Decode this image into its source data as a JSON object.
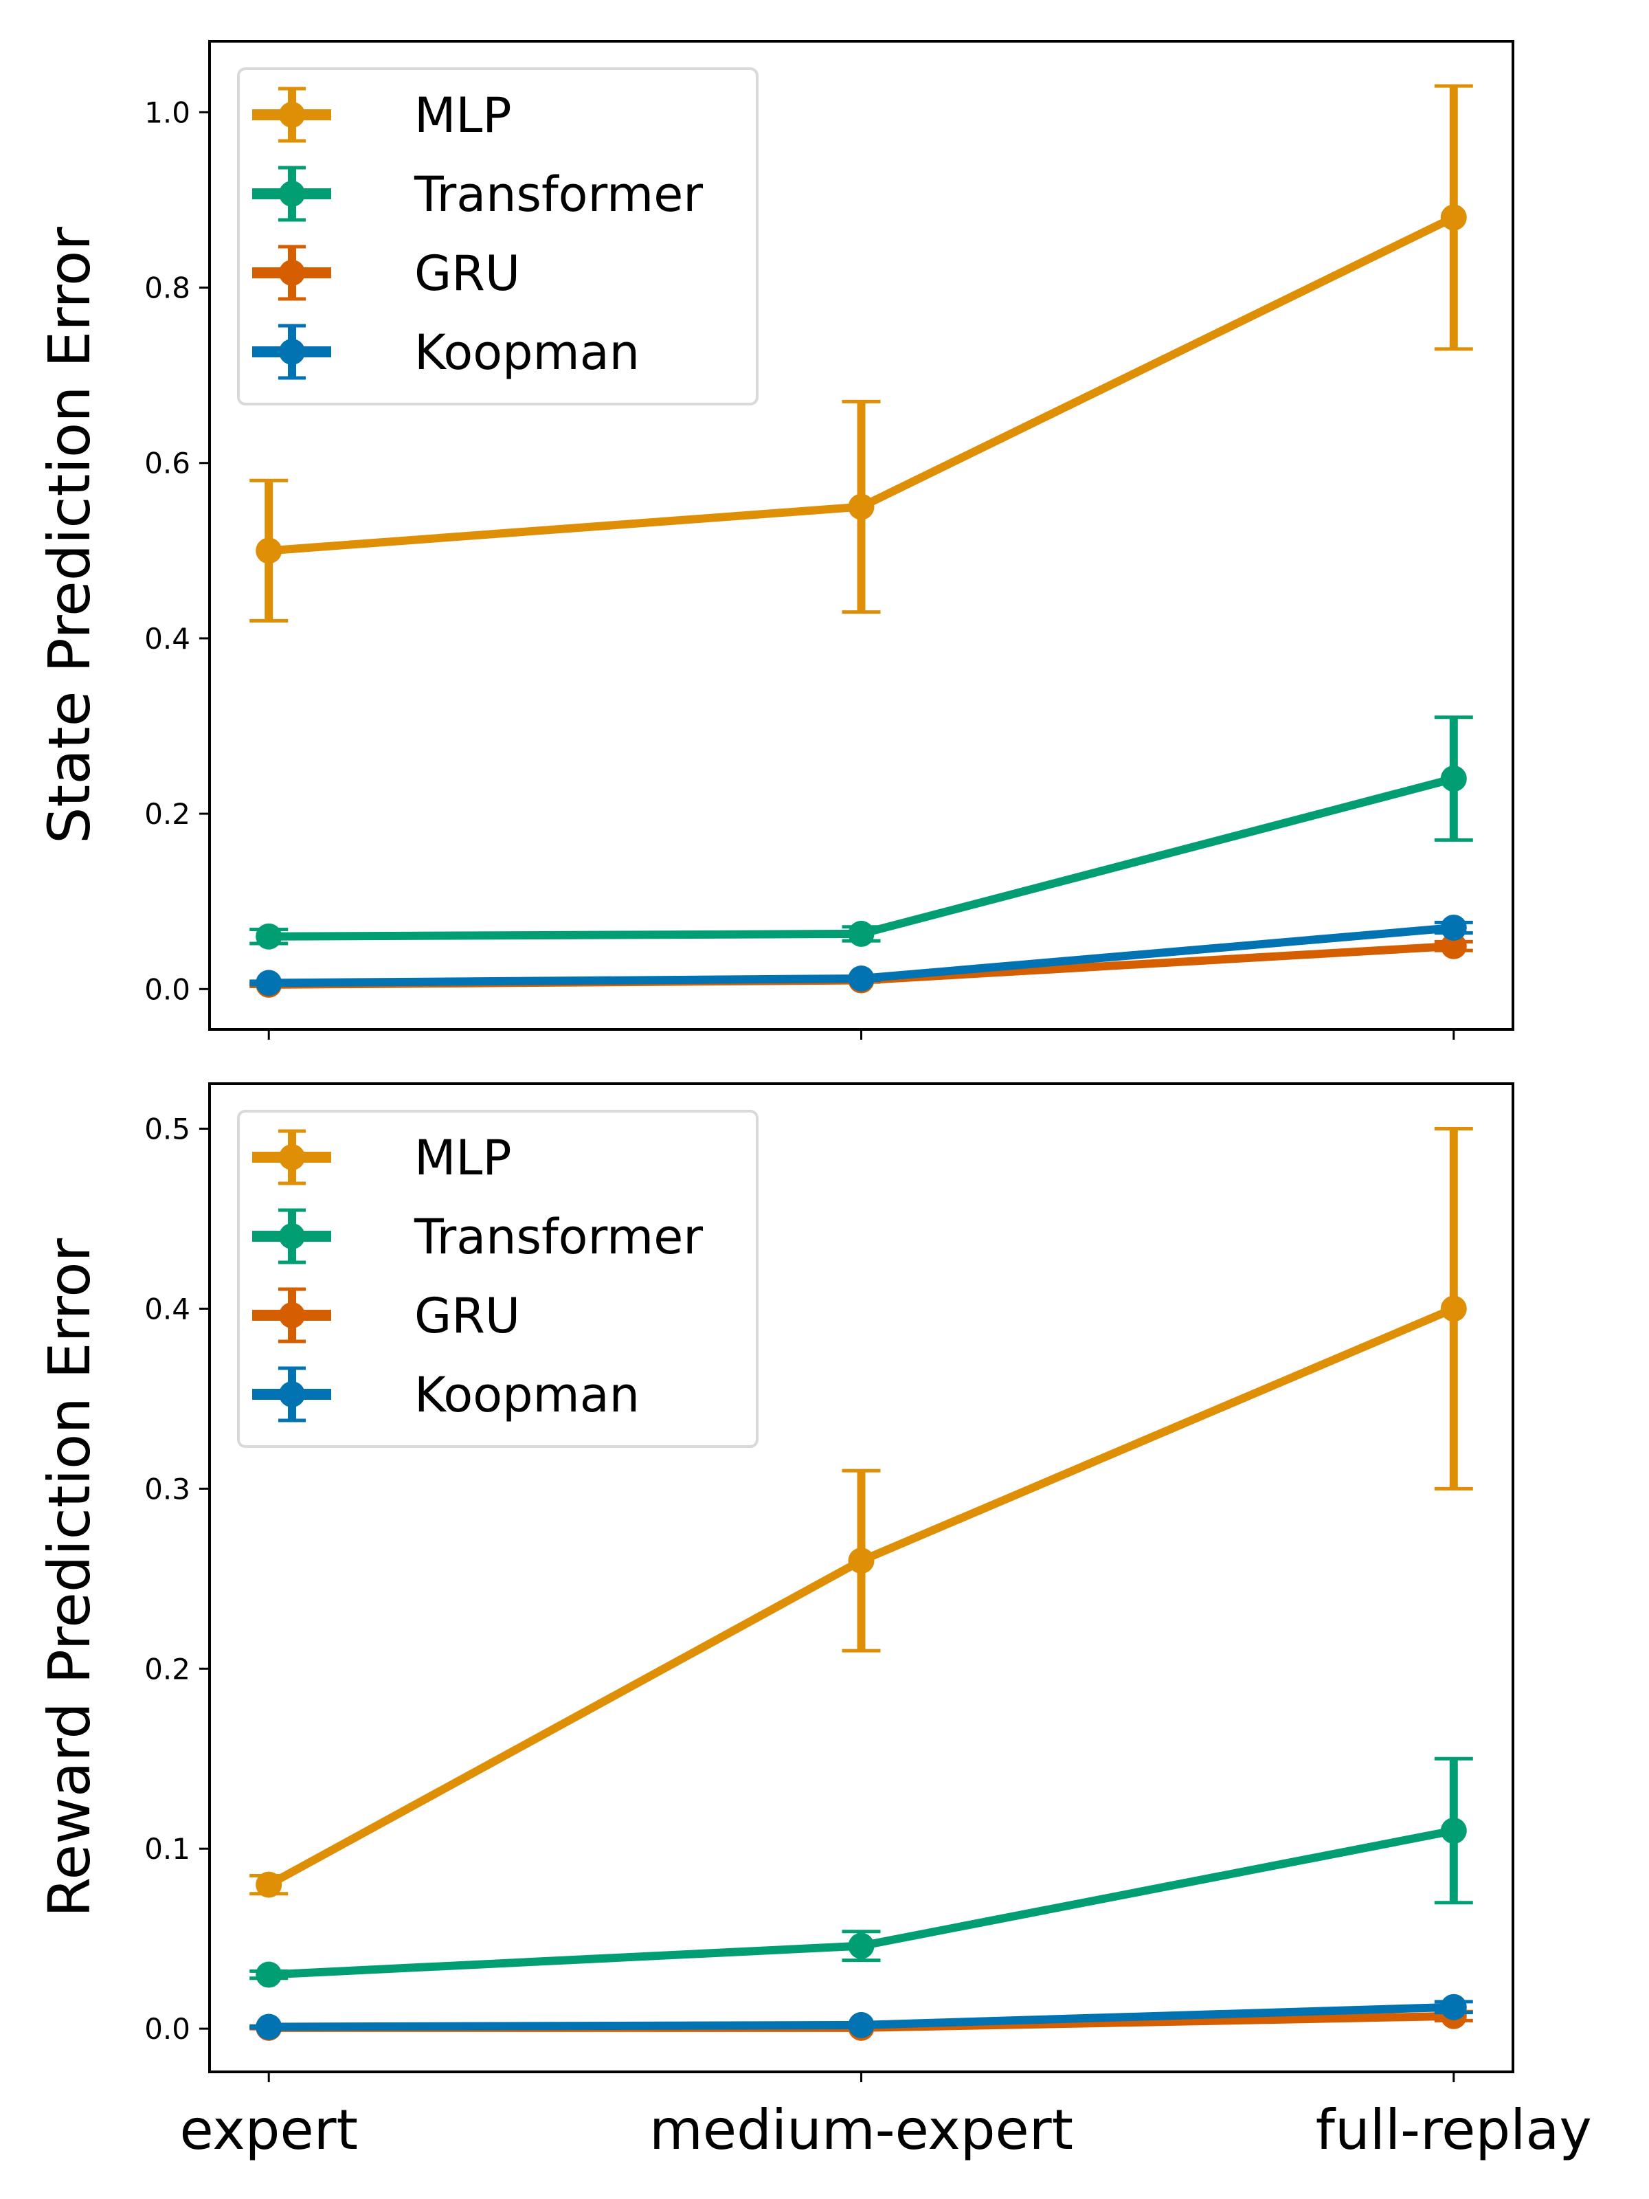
{
  "chart_data": [
    {
      "type": "line",
      "panel": "top",
      "title": "",
      "xlabel": "",
      "ylabel": "State Prediction Error",
      "categories": [
        "expert",
        "medium-expert",
        "full-replay"
      ],
      "show_xtick_labels": false,
      "ylim": [
        -0.046,
        1.081
      ],
      "yticks": [
        0.0,
        0.2,
        0.4,
        0.6,
        0.8,
        1.0
      ],
      "ytick_labels": [
        "0.0",
        "0.2",
        "0.4",
        "0.6",
        "0.8",
        "1.0"
      ],
      "grid": false,
      "legend_position": "top-left",
      "series": [
        {
          "name": "MLP",
          "color": "#de8f05",
          "values": [
            0.5,
            0.55,
            0.88
          ],
          "errors": [
            0.08,
            0.12,
            0.15
          ]
        },
        {
          "name": "Transformer",
          "color": "#029e73",
          "values": [
            0.06,
            0.063,
            0.24
          ],
          "errors": [
            0.008,
            0.008,
            0.07
          ]
        },
        {
          "name": "GRU",
          "color": "#d55e00",
          "values": [
            0.005,
            0.01,
            0.049
          ],
          "errors": [
            0.002,
            0.002,
            0.005
          ]
        },
        {
          "name": "Koopman",
          "color": "#0173b2",
          "values": [
            0.007,
            0.012,
            0.07
          ],
          "errors": [
            0.002,
            0.002,
            0.006
          ]
        }
      ]
    },
    {
      "type": "line",
      "panel": "bottom",
      "title": "",
      "xlabel": "",
      "ylabel": "Reward Prediction Error",
      "categories": [
        "expert",
        "medium-expert",
        "full-replay"
      ],
      "show_xtick_labels": true,
      "ylim": [
        -0.024,
        0.525
      ],
      "yticks": [
        0.0,
        0.1,
        0.2,
        0.3,
        0.4,
        0.5
      ],
      "ytick_labels": [
        "0.0",
        "0.1",
        "0.2",
        "0.3",
        "0.4",
        "0.5"
      ],
      "grid": false,
      "legend_position": "top-left",
      "series": [
        {
          "name": "MLP",
          "color": "#de8f05",
          "values": [
            0.08,
            0.26,
            0.4
          ],
          "errors": [
            0.005,
            0.05,
            0.1
          ]
        },
        {
          "name": "Transformer",
          "color": "#029e73",
          "values": [
            0.03,
            0.046,
            0.11
          ],
          "errors": [
            0.002,
            0.008,
            0.04
          ]
        },
        {
          "name": "GRU",
          "color": "#d55e00",
          "values": [
            0.0005,
            0.0005,
            0.007
          ],
          "errors": [
            0.0005,
            0.0005,
            0.0025
          ]
        },
        {
          "name": "Koopman",
          "color": "#0173b2",
          "values": [
            0.001,
            0.002,
            0.012
          ],
          "errors": [
            0.0005,
            0.0005,
            0.003
          ]
        }
      ]
    }
  ]
}
